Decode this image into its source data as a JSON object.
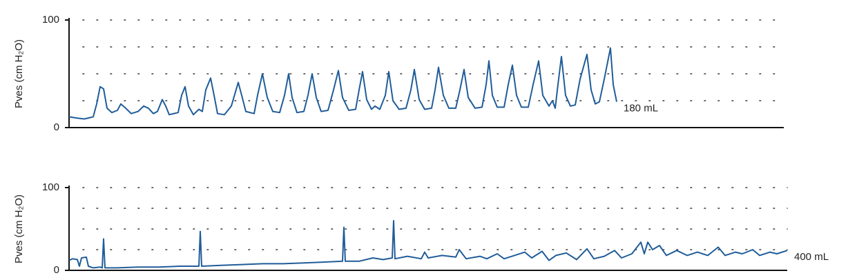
{
  "chart_data": [
    {
      "type": "line",
      "ylabel": "Pves (cm H₂O)",
      "annotation": "180 mL",
      "ylim": [
        0,
        100
      ],
      "yticks": [
        0,
        100
      ],
      "grid_y": [
        25,
        50,
        75,
        100
      ],
      "xlim": [
        0,
        1035
      ],
      "color": "#1f5c99",
      "x": [
        0,
        10,
        22,
        35,
        40,
        45,
        50,
        55,
        62,
        70,
        75,
        82,
        90,
        100,
        108,
        115,
        122,
        128,
        135,
        140,
        145,
        158,
        163,
        168,
        173,
        180,
        188,
        193,
        198,
        205,
        210,
        215,
        225,
        235,
        245,
        250,
        256,
        268,
        273,
        280,
        287,
        295,
        305,
        312,
        318,
        323,
        330,
        340,
        346,
        352,
        358,
        365,
        375,
        383,
        390,
        396,
        405,
        415,
        420,
        425,
        431,
        438,
        443,
        450,
        458,
        463,
        469,
        478,
        488,
        495,
        500,
        507,
        515,
        525,
        530,
        535,
        542,
        550,
        560,
        566,
        572,
        578,
        588,
        598,
        604,
        608,
        613,
        620,
        630,
        636,
        642,
        648,
        655,
        665,
        672,
        680,
        686,
        695,
        700,
        704,
        708,
        713,
        719,
        726,
        733,
        740,
        750,
        756,
        762,
        768,
        775,
        784,
        788,
        793
      ],
      "values": [
        10,
        9,
        8,
        10,
        22,
        38,
        36,
        18,
        14,
        16,
        22,
        18,
        13,
        15,
        20,
        18,
        13,
        15,
        26,
        20,
        12,
        14,
        30,
        38,
        20,
        12,
        17,
        15,
        35,
        46,
        30,
        13,
        12,
        20,
        42,
        30,
        15,
        13,
        30,
        50,
        28,
        15,
        14,
        30,
        50,
        28,
        14,
        15,
        30,
        50,
        28,
        15,
        16,
        35,
        53,
        28,
        16,
        17,
        35,
        52,
        26,
        17,
        20,
        17,
        30,
        52,
        25,
        17,
        18,
        35,
        54,
        26,
        17,
        18,
        35,
        56,
        30,
        18,
        18,
        35,
        54,
        28,
        18,
        19,
        40,
        62,
        30,
        19,
        19,
        40,
        58,
        30,
        19,
        19,
        40,
        62,
        30,
        20,
        25,
        18,
        40,
        66,
        30,
        20,
        21,
        45,
        68,
        35,
        22,
        24,
        45,
        74,
        40,
        24
      ]
    },
    {
      "type": "line",
      "ylabel": "Pves (cm H₂O)",
      "annotation": "400 mL",
      "ylim": [
        0,
        100
      ],
      "yticks": [
        0,
        100
      ],
      "grid_y": [
        25,
        50,
        75,
        100
      ],
      "xlim": [
        0,
        1040
      ],
      "color": "#1f5c99",
      "x": [
        0,
        5,
        12,
        15,
        18,
        25,
        28,
        35,
        45,
        48,
        50,
        52,
        70,
        100,
        130,
        160,
        188,
        190,
        192,
        220,
        250,
        280,
        310,
        340,
        370,
        396,
        398,
        400,
        420,
        440,
        455,
        468,
        470,
        472,
        490,
        510,
        515,
        520,
        540,
        560,
        565,
        575,
        595,
        605,
        620,
        630,
        645,
        660,
        670,
        685,
        695,
        705,
        720,
        735,
        750,
        760,
        775,
        790,
        800,
        815,
        828,
        833,
        838,
        845,
        855,
        865,
        880,
        895,
        910,
        925,
        940,
        950,
        965,
        975,
        990,
        1000,
        1015,
        1025,
        1040
      ],
      "values": [
        12,
        14,
        13,
        5,
        15,
        16,
        5,
        3,
        4,
        3,
        38,
        3,
        3,
        4,
        4,
        5,
        5,
        47,
        5,
        6,
        7,
        8,
        8,
        9,
        10,
        11,
        52,
        11,
        11,
        15,
        13,
        15,
        60,
        14,
        17,
        14,
        22,
        15,
        18,
        16,
        25,
        14,
        17,
        14,
        20,
        14,
        18,
        22,
        15,
        23,
        12,
        18,
        21,
        13,
        26,
        14,
        17,
        24,
        15,
        20,
        34,
        20,
        34,
        25,
        30,
        18,
        24,
        18,
        22,
        18,
        28,
        18,
        22,
        20,
        25,
        18,
        22,
        20,
        24
      ]
    }
  ]
}
